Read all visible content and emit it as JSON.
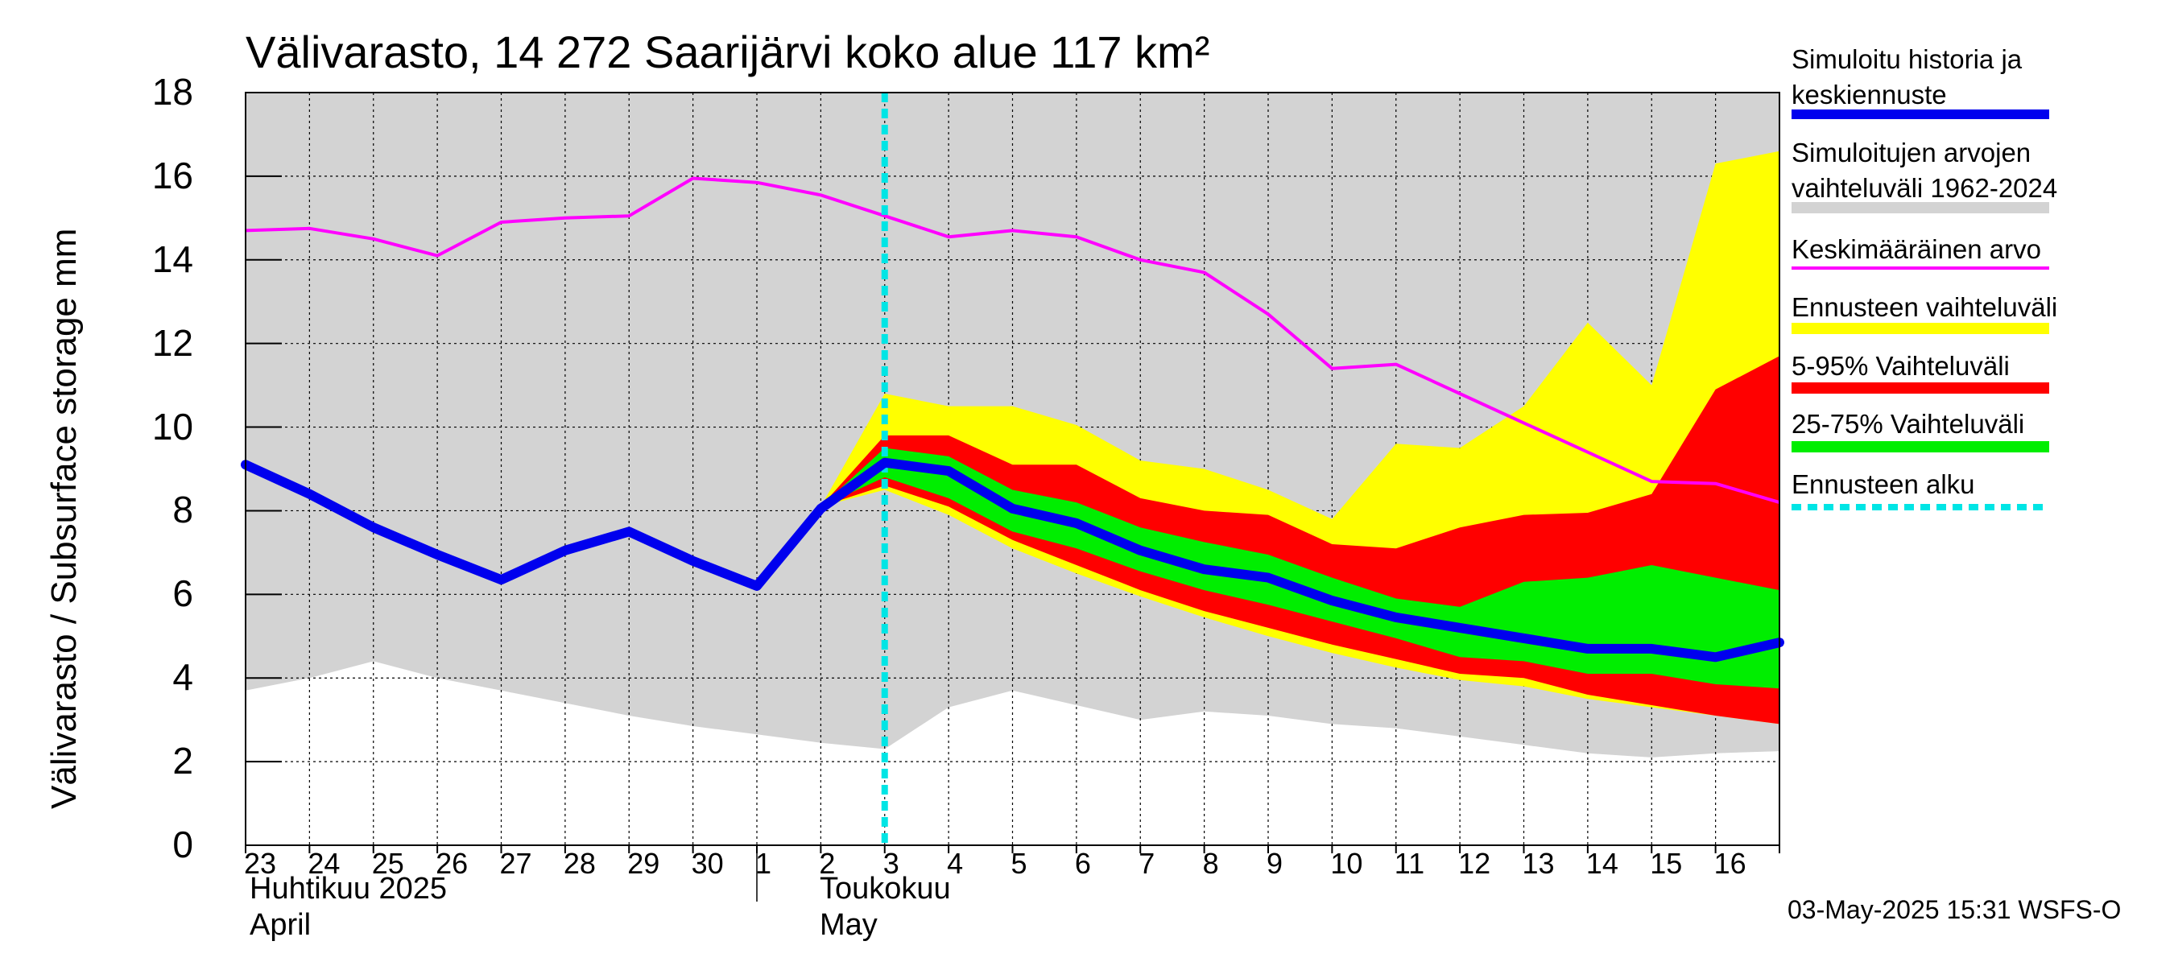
{
  "chart_data": {
    "type": "area",
    "title": "Välivarasto, 14 272 Saarijärvi koko alue 117 km²",
    "ylabel": "Välivarasto / Subsurface storage  mm",
    "ylim": [
      0,
      18
    ],
    "yticks": [
      "0",
      "2",
      "4",
      "6",
      "8",
      "10",
      "12",
      "14",
      "16",
      "18"
    ],
    "xlim": [
      0,
      24
    ],
    "x_tick_labels": [
      "23",
      "24",
      "25",
      "26",
      "27",
      "28",
      "29",
      "30",
      "1",
      "2",
      "3",
      "4",
      "5",
      "6",
      "7",
      "8",
      "9",
      "10",
      "11",
      "12",
      "13",
      "14",
      "15",
      "16"
    ],
    "month_labels": {
      "april_fi": "Huhtikuu  2025",
      "april_en": "April",
      "may_fi": "Toukokuu",
      "may_en": "May"
    },
    "forecast_start_x": 10,
    "grid": true,
    "colors": {
      "history_band": "#d3d3d3",
      "yellow": "#ffff00",
      "red": "#ff0000",
      "green": "#00ee00",
      "blue": "#0000ee",
      "magenta": "#ff00ff",
      "cyan": "#00e5e5"
    },
    "series": {
      "history_range": {
        "name": "Simuloitujen arvojen vaihteluväli 1962-2024",
        "x": [
          0,
          1,
          2,
          3,
          4,
          5,
          6,
          7,
          8,
          9,
          10,
          11,
          12,
          13,
          14,
          15,
          16,
          17,
          18,
          19,
          20,
          21,
          22,
          23,
          24
        ],
        "upper": [
          18,
          18,
          18,
          18,
          18,
          18,
          18,
          18,
          18,
          18,
          18,
          18,
          18,
          18,
          18,
          18,
          18,
          18,
          18,
          18,
          18,
          18,
          18,
          18,
          18
        ],
        "lower": [
          3.7,
          4.0,
          4.4,
          4.0,
          3.7,
          3.4,
          3.1,
          2.85,
          2.65,
          2.45,
          2.3,
          3.3,
          3.7,
          3.35,
          3.0,
          3.2,
          3.1,
          2.9,
          2.8,
          2.6,
          2.4,
          2.2,
          2.1,
          2.2,
          2.25
        ]
      },
      "mean": {
        "name": "Keskimääräinen arvo",
        "x": [
          0,
          1,
          2,
          3,
          4,
          5,
          6,
          7,
          8,
          9,
          10,
          11,
          12,
          13,
          14,
          15,
          16,
          17,
          18,
          19,
          20,
          21,
          22,
          23,
          24
        ],
        "values": [
          14.7,
          14.75,
          14.5,
          14.1,
          14.9,
          15.0,
          15.05,
          15.95,
          15.85,
          15.55,
          15.05,
          14.55,
          14.7,
          14.55,
          14.0,
          13.7,
          12.7,
          11.4,
          11.5,
          10.8,
          10.1,
          9.4,
          8.7,
          8.65,
          8.2
        ]
      },
      "forecast_range": {
        "name": "Ennusteen vaihteluväli",
        "x": [
          9,
          10,
          11,
          12,
          13,
          14,
          15,
          16,
          17,
          18,
          19,
          20,
          21,
          22,
          23,
          24
        ],
        "upper": [
          8.1,
          10.8,
          10.5,
          10.5,
          10.05,
          9.2,
          9.0,
          8.5,
          7.8,
          9.6,
          9.5,
          10.5,
          12.5,
          11.0,
          16.3,
          16.6
        ],
        "lower": [
          8.1,
          8.5,
          7.9,
          7.1,
          6.5,
          5.95,
          5.45,
          5.0,
          4.6,
          4.25,
          3.95,
          3.8,
          3.5,
          3.3,
          3.1,
          2.9
        ]
      },
      "p5_95": {
        "name": "5-95% Vaihteluväli",
        "x": [
          9,
          10,
          11,
          12,
          13,
          14,
          15,
          16,
          17,
          18,
          19,
          20,
          21,
          22,
          23,
          24
        ],
        "upper": [
          8.1,
          9.8,
          9.8,
          9.1,
          9.1,
          8.3,
          8.0,
          7.9,
          7.2,
          7.1,
          7.6,
          7.9,
          7.95,
          8.4,
          10.9,
          11.7
        ],
        "lower": [
          8.1,
          8.6,
          8.1,
          7.3,
          6.7,
          6.1,
          5.6,
          5.2,
          4.8,
          4.45,
          4.1,
          4.0,
          3.6,
          3.35,
          3.1,
          2.9
        ]
      },
      "p25_75": {
        "name": "25-75% Vaihteluväli",
        "x": [
          9,
          10,
          11,
          12,
          13,
          14,
          15,
          16,
          17,
          18,
          19,
          20,
          21,
          22,
          23,
          24
        ],
        "upper": [
          8.1,
          9.5,
          9.3,
          8.5,
          8.2,
          7.6,
          7.25,
          6.95,
          6.4,
          5.9,
          5.7,
          6.3,
          6.4,
          6.7,
          6.4,
          6.1
        ],
        "lower": [
          8.1,
          8.8,
          8.3,
          7.5,
          7.1,
          6.55,
          6.1,
          5.75,
          5.35,
          4.95,
          4.5,
          4.4,
          4.1,
          4.1,
          3.85,
          3.75
        ]
      },
      "simulated": {
        "name": "Simuloitu historia ja keskiennuste",
        "x": [
          0,
          1,
          2,
          3,
          4,
          5,
          6,
          7,
          8,
          9,
          10,
          11,
          12,
          13,
          14,
          15,
          16,
          17,
          18,
          19,
          20,
          21,
          22,
          23,
          24
        ],
        "values": [
          9.1,
          8.4,
          7.6,
          6.95,
          6.35,
          7.05,
          7.5,
          6.8,
          6.2,
          8.05,
          9.15,
          8.95,
          8.05,
          7.7,
          7.05,
          6.6,
          6.4,
          5.85,
          5.45,
          5.2,
          4.95,
          4.7,
          4.7,
          4.5,
          4.85
        ]
      }
    },
    "legend": {
      "simulated": "Simuloitu historia ja keskiennuste",
      "history_range": "Simuloitujen arvojen vaihteluväli 1962-2024",
      "mean": "Keskimääräinen arvo",
      "forecast_range": "Ennusteen vaihteluväli",
      "p5_95": "5-95% Vaihteluväli",
      "p25_75": "25-75% Vaihteluväli",
      "forecast_start": "Ennusteen alku"
    }
  },
  "footer": "03-May-2025 15:31 WSFS-O"
}
